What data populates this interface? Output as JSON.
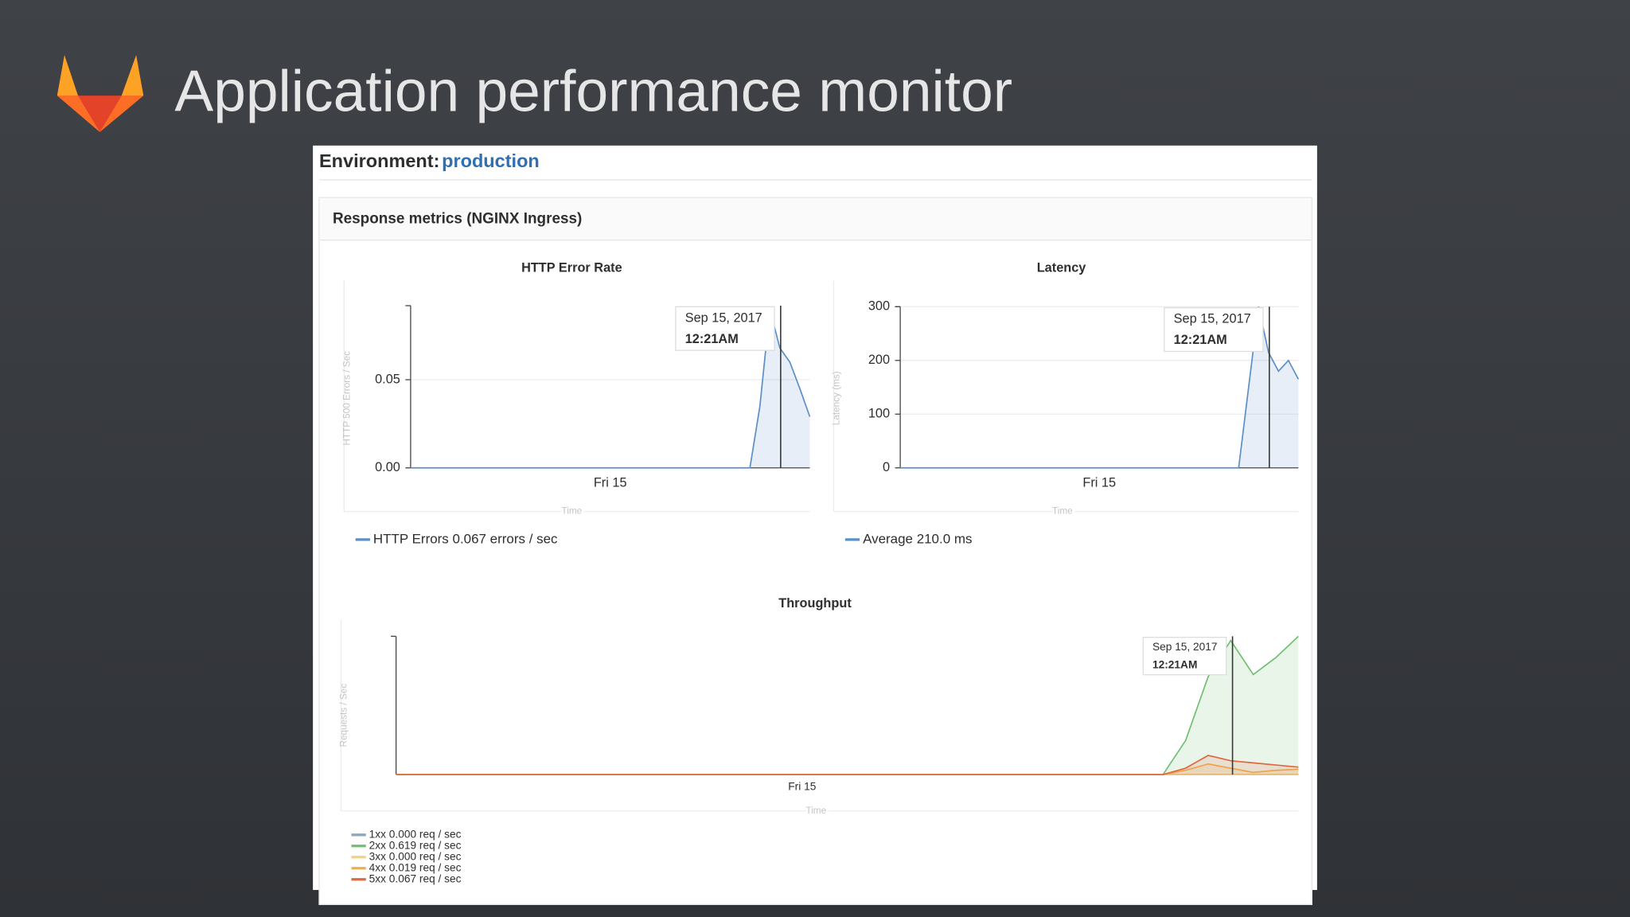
{
  "slide": {
    "title": "Application performance monitor"
  },
  "environment": {
    "label": "Environment:",
    "name": "production"
  },
  "panel": {
    "title": "Response metrics (NGINX Ingress)"
  },
  "chart_data": [
    {
      "type": "area",
      "title": "HTTP Error Rate",
      "xlabel": "Time",
      "ylabel": "HTTP 500 Errors / Sec",
      "categories": [
        null,
        null,
        null,
        null,
        null,
        null,
        null,
        null,
        null,
        null,
        null,
        null,
        null,
        null,
        null,
        null,
        null,
        null,
        null,
        null,
        "Fri 15",
        null,
        null,
        null,
        null,
        null,
        null,
        null,
        null,
        null,
        null,
        null,
        null,
        null,
        null,
        null,
        null,
        null,
        null,
        null,
        null
      ],
      "series": [
        {
          "name": "HTTP Errors 0.067 errors / sec",
          "color": "#5b8fc7",
          "values": [
            0,
            0,
            0,
            0,
            0,
            0,
            0,
            0,
            0,
            0,
            0,
            0,
            0,
            0,
            0,
            0,
            0,
            0,
            0,
            0,
            0,
            0,
            0,
            0,
            0,
            0,
            0,
            0,
            0,
            0,
            0,
            0,
            0,
            0,
            0,
            0.035,
            0.09,
            0.068,
            0.06,
            0.045,
            0.029
          ]
        }
      ],
      "ylim": [
        0,
        0.092
      ],
      "yticks": [
        {
          "value": 0,
          "label": "0.00"
        },
        {
          "value": 0.05,
          "label": "0.05"
        }
      ],
      "tooltip": {
        "date": "Sep 15, 2017",
        "time": "12:21AM"
      }
    },
    {
      "type": "area",
      "title": "Latency",
      "xlabel": "Time",
      "ylabel": "Latency (ms)",
      "categories": [
        null,
        null,
        null,
        null,
        null,
        null,
        null,
        null,
        null,
        null,
        null,
        null,
        null,
        null,
        null,
        null,
        null,
        null,
        null,
        null,
        "Fri 15",
        null,
        null,
        null,
        null,
        null,
        null,
        null,
        null,
        null,
        null,
        null,
        null,
        null,
        null,
        null,
        null,
        null,
        null,
        null,
        null
      ],
      "series": [
        {
          "name": "Average 210.0 ms",
          "color": "#5b8fc7",
          "values": [
            0,
            0,
            0,
            0,
            0,
            0,
            0,
            0,
            0,
            0,
            0,
            0,
            0,
            0,
            0,
            0,
            0,
            0,
            0,
            0,
            0,
            0,
            0,
            0,
            0,
            0,
            0,
            0,
            0,
            0,
            0,
            0,
            0,
            0,
            0,
            150,
            300,
            215,
            180,
            200,
            165
          ]
        }
      ],
      "ylim": [
        0,
        300
      ],
      "yticks": [
        0,
        100,
        200,
        300
      ],
      "tooltip": {
        "date": "Sep 15, 2017",
        "time": "12:21AM"
      }
    },
    {
      "type": "area",
      "title": "Throughput",
      "xlabel": "Time",
      "ylabel": "Requests / Sec",
      "categories": [
        null,
        null,
        null,
        null,
        null,
        null,
        null,
        null,
        null,
        null,
        null,
        null,
        null,
        null,
        null,
        null,
        null,
        null,
        "Fri 15",
        null,
        null,
        null,
        null,
        null,
        null,
        null,
        null,
        null,
        null,
        null,
        null,
        null,
        null,
        null,
        null,
        null,
        null,
        null,
        null,
        null,
        null
      ],
      "series": [
        {
          "name": "1xx 0.000 req / sec",
          "color": "#8aa7c4",
          "values": [
            0,
            0,
            0,
            0,
            0,
            0,
            0,
            0,
            0,
            0,
            0,
            0,
            0,
            0,
            0,
            0,
            0,
            0,
            0,
            0,
            0,
            0,
            0,
            0,
            0,
            0,
            0,
            0,
            0,
            0,
            0,
            0,
            0,
            0,
            0,
            0,
            0,
            0,
            0,
            0,
            0
          ]
        },
        {
          "name": "2xx 0.619 req / sec",
          "color": "#6fbf73",
          "values": [
            0,
            0,
            0,
            0,
            0,
            0,
            0,
            0,
            0,
            0,
            0,
            0,
            0,
            0,
            0,
            0,
            0,
            0,
            0,
            0,
            0,
            0,
            0,
            0,
            0,
            0,
            0,
            0,
            0,
            0,
            0,
            0,
            0,
            0,
            0,
            0.16,
            0.46,
            0.63,
            0.47,
            0.55,
            0.65
          ]
        },
        {
          "name": "3xx 0.000 req / sec",
          "color": "#f3d27a",
          "values": [
            0,
            0,
            0,
            0,
            0,
            0,
            0,
            0,
            0,
            0,
            0,
            0,
            0,
            0,
            0,
            0,
            0,
            0,
            0,
            0,
            0,
            0,
            0,
            0,
            0,
            0,
            0,
            0,
            0,
            0,
            0,
            0,
            0,
            0,
            0,
            0,
            0,
            0,
            0,
            0,
            0
          ]
        },
        {
          "name": "4xx 0.019 req / sec",
          "color": "#f0ad4e",
          "values": [
            0,
            0,
            0,
            0,
            0,
            0,
            0,
            0,
            0,
            0,
            0,
            0,
            0,
            0,
            0,
            0,
            0,
            0,
            0,
            0,
            0,
            0,
            0,
            0,
            0,
            0,
            0,
            0,
            0,
            0,
            0,
            0,
            0,
            0,
            0,
            0.02,
            0.05,
            0.03,
            0.01,
            0.02,
            0.025
          ]
        },
        {
          "name": "5xx 0.067 req / sec",
          "color": "#e2673f",
          "values": [
            0,
            0,
            0,
            0,
            0,
            0,
            0,
            0,
            0,
            0,
            0,
            0,
            0,
            0,
            0,
            0,
            0,
            0,
            0,
            0,
            0,
            0,
            0,
            0,
            0,
            0,
            0,
            0,
            0,
            0,
            0,
            0,
            0,
            0,
            0,
            0.03,
            0.09,
            0.065,
            0.055,
            0.045,
            0.035
          ]
        }
      ],
      "ylim": [
        0,
        0.65
      ],
      "tooltip": {
        "date": "Sep 15, 2017",
        "time": "12:21AM"
      }
    }
  ]
}
